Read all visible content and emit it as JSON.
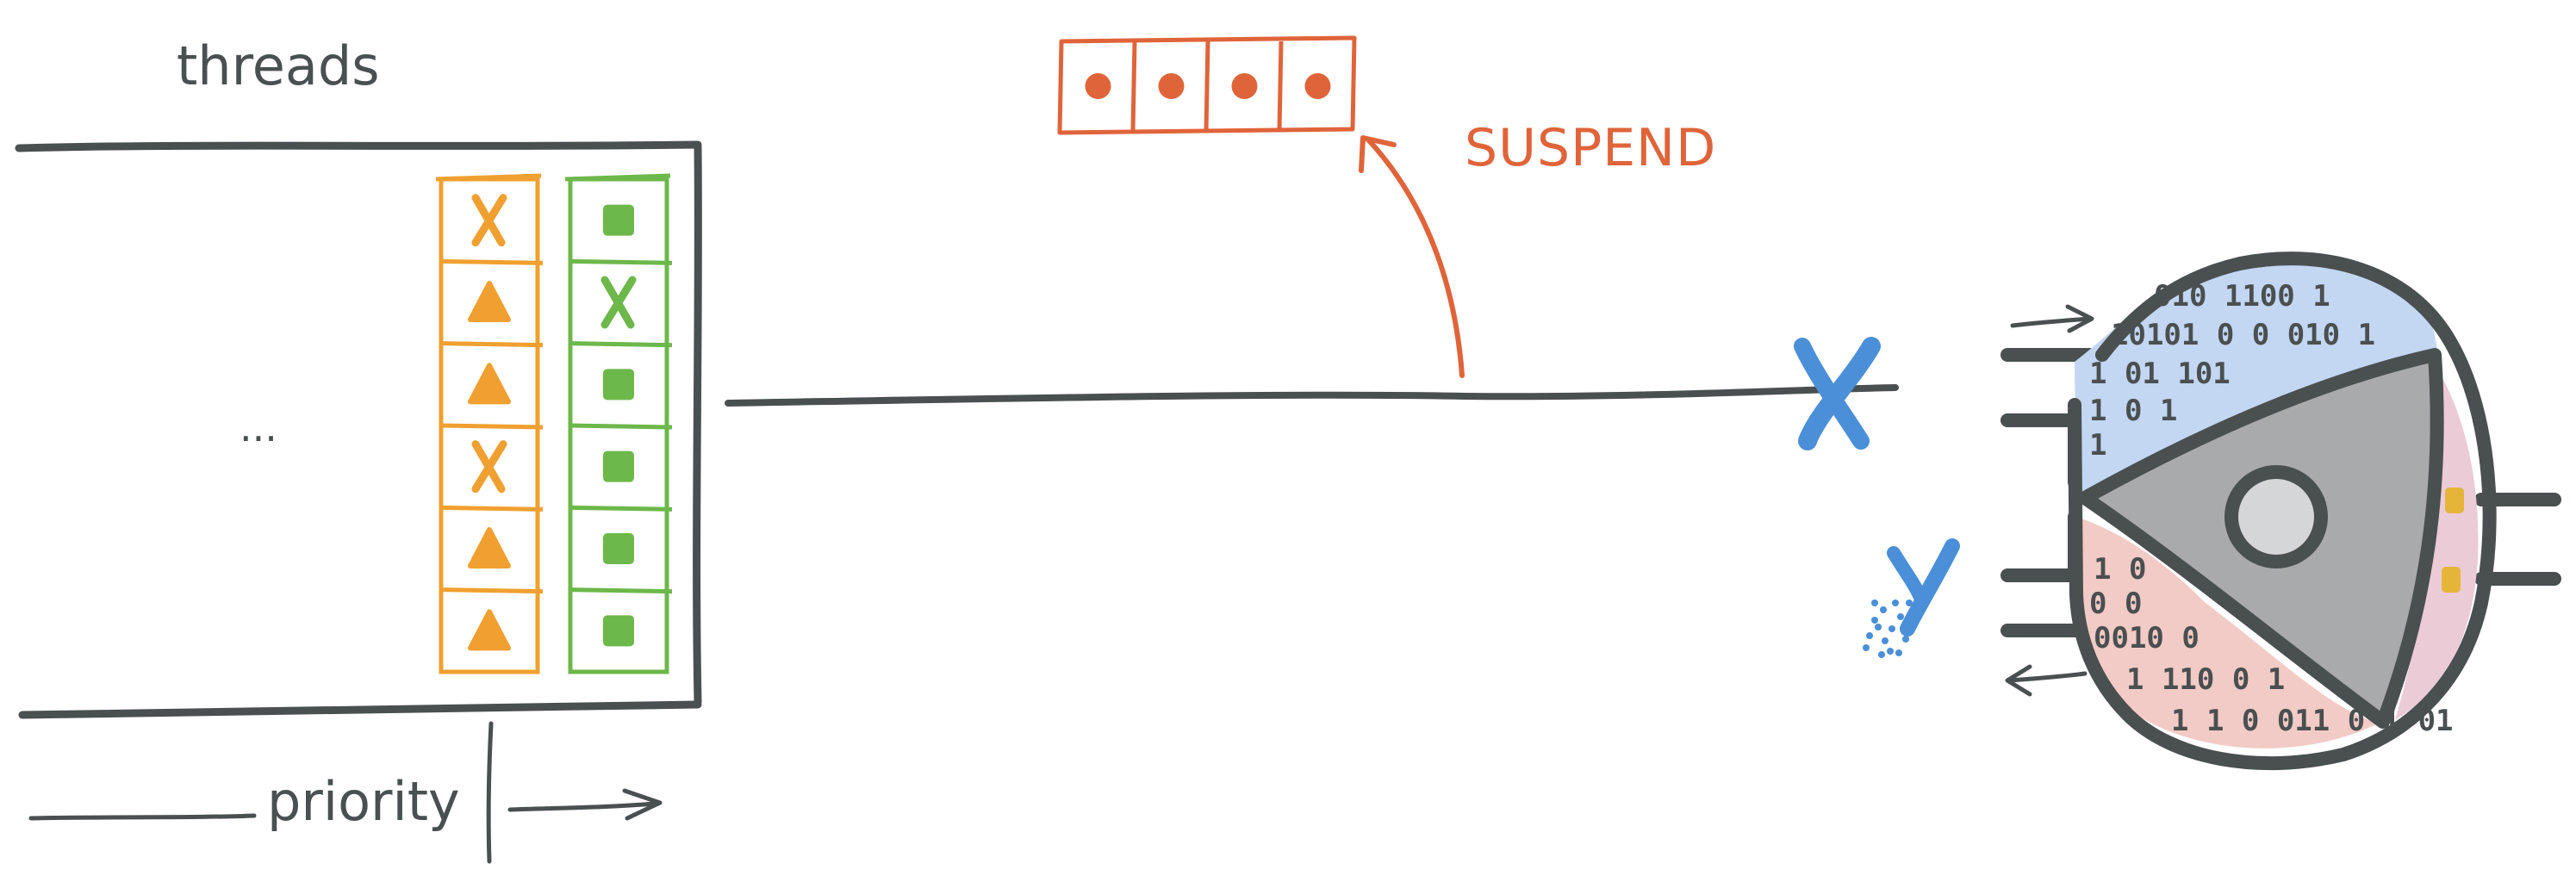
{
  "labels": {
    "threads": "threads",
    "ellipsis": "...",
    "priority": "priority",
    "suspend": "SUSPEND"
  },
  "queues": {
    "orange": {
      "color": "#f0a030",
      "cells": [
        "x-icon",
        "triangle-icon",
        "triangle-icon",
        "x-icon",
        "triangle-icon",
        "triangle-icon"
      ]
    },
    "green": {
      "color": "#6cb84a",
      "cells": [
        "square-icon",
        "x-icon",
        "square-icon",
        "square-icon",
        "square-icon",
        "square-icon"
      ]
    }
  },
  "suspend_buffer": {
    "color": "#e0643a",
    "slots": 4
  },
  "engine": {
    "blue_bits": [
      "010 1100 1",
      "10101 0 0 010 1",
      "1 01 101",
      "1 0 1",
      "1"
    ],
    "red_bits": [
      "1 0",
      "0 0",
      "0010 0",
      "1 110 0 1",
      "1 1 0 011 0 1 01"
    ],
    "colors": {
      "blue": "#c3d6f2",
      "red": "#f2cbc6",
      "pink": "#ebcbd6",
      "core": "#a8aaac",
      "dark": "#4a4f50",
      "yellow": "#e5b53a"
    }
  },
  "colors": {
    "ink": "#4a4f50",
    "accent_blue": "#4a8fd8",
    "accent_red": "#e0643a"
  }
}
